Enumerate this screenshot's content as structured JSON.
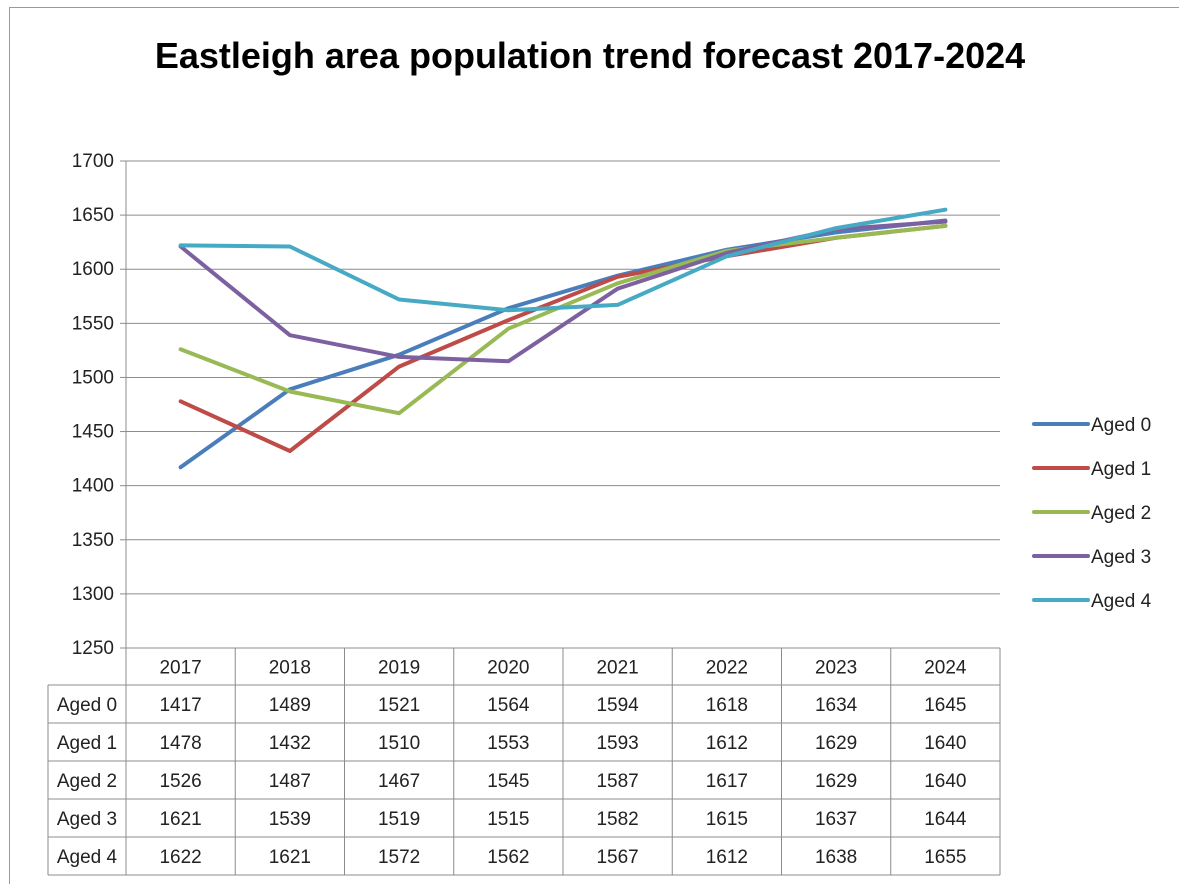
{
  "chart_data": {
    "type": "line",
    "title": "Eastleigh area population trend forecast 2017-2024",
    "x": [
      "2017",
      "2018",
      "2019",
      "2020",
      "2021",
      "2022",
      "2023",
      "2024"
    ],
    "ylim": [
      1250,
      1700
    ],
    "yticks": [
      "1250",
      "1300",
      "1350",
      "1400",
      "1450",
      "1500",
      "1550",
      "1600",
      "1650",
      "1700"
    ],
    "grid": true,
    "legend_position": "right",
    "data_table": true,
    "series": [
      {
        "name": "Aged 0",
        "color": "#4a7ebb",
        "values": [
          1417,
          1489,
          1521,
          1564,
          1594,
          1618,
          1634,
          1645
        ]
      },
      {
        "name": "Aged 1",
        "color": "#be4b48",
        "values": [
          1478,
          1432,
          1510,
          1553,
          1593,
          1612,
          1629,
          1640
        ]
      },
      {
        "name": "Aged 2",
        "color": "#98b954",
        "values": [
          1526,
          1487,
          1467,
          1545,
          1587,
          1617,
          1629,
          1640
        ]
      },
      {
        "name": "Aged 3",
        "color": "#7d60a0",
        "values": [
          1621,
          1539,
          1519,
          1515,
          1582,
          1615,
          1637,
          1644
        ]
      },
      {
        "name": "Aged 4",
        "color": "#46aac4",
        "values": [
          1622,
          1621,
          1572,
          1562,
          1567,
          1612,
          1638,
          1655
        ]
      }
    ]
  }
}
